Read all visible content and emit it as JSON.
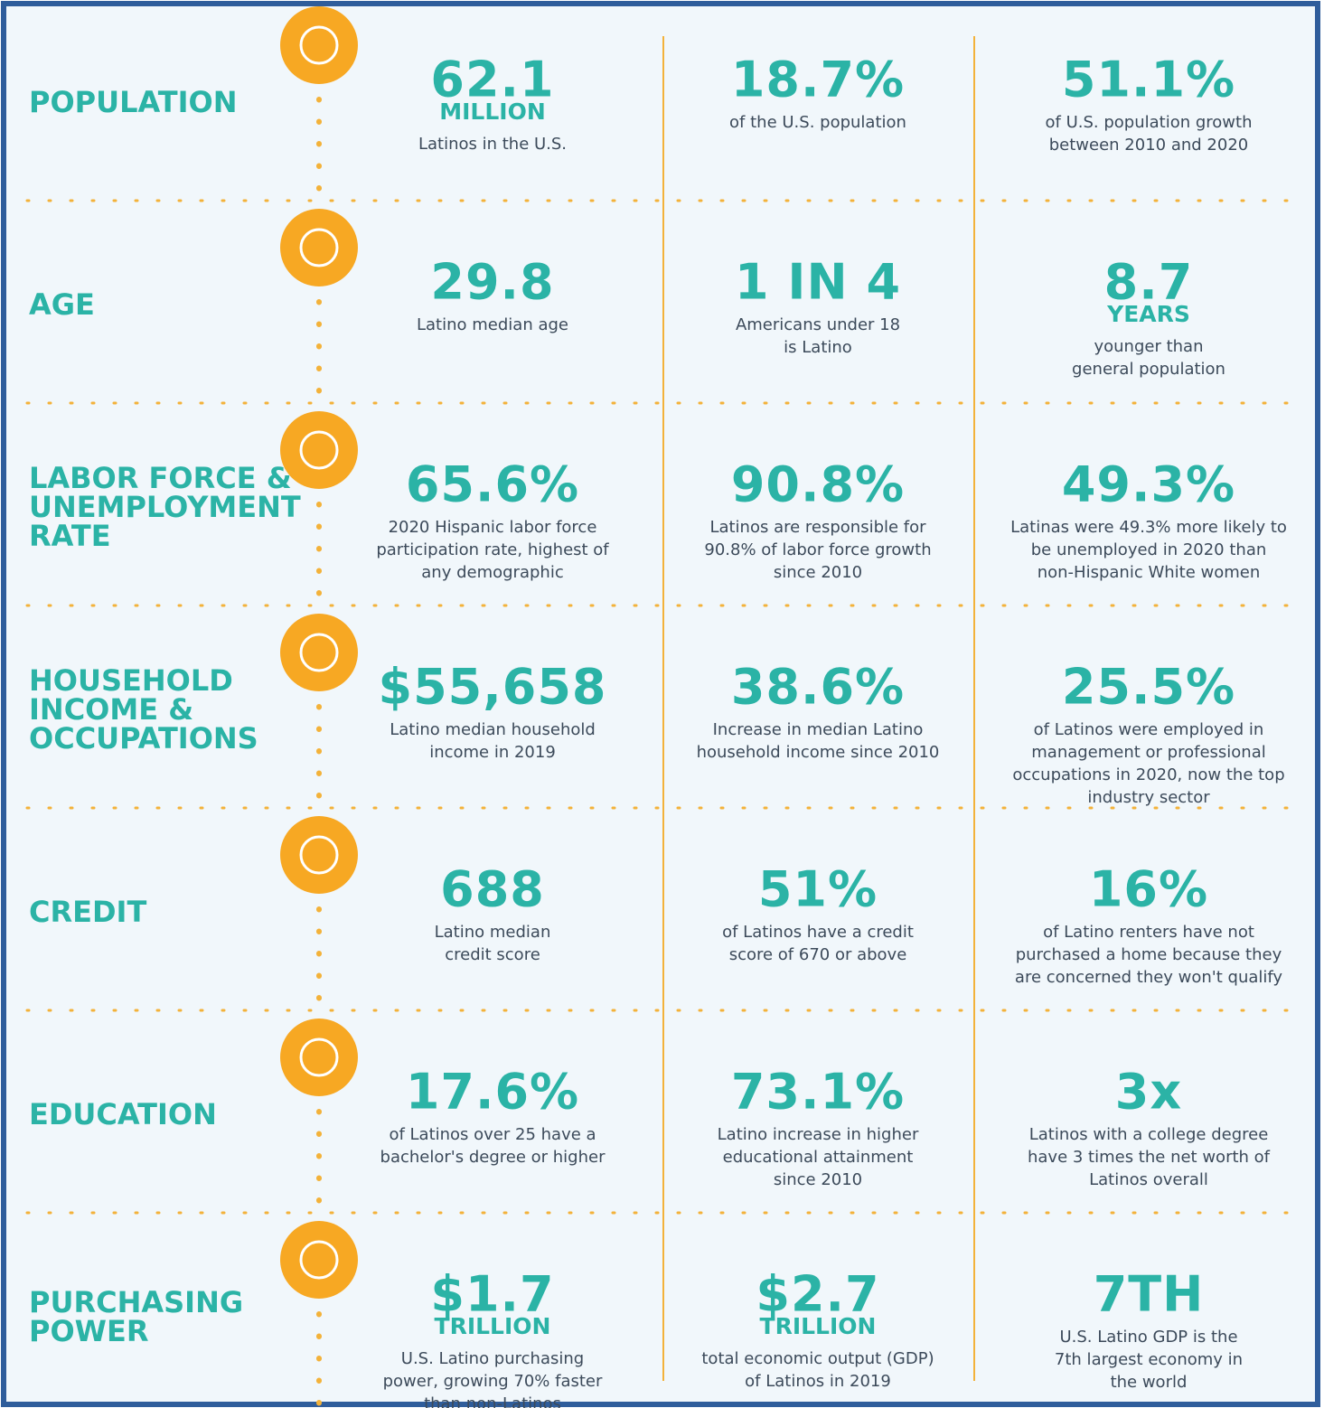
{
  "rows": [
    {
      "label": [
        "POPULATION"
      ],
      "stats": [
        {
          "value": "62.1",
          "unit": "MILLION",
          "desc": [
            "Latinos in the U.S."
          ]
        },
        {
          "value": "18.7%",
          "desc": [
            "of the U.S. population"
          ]
        },
        {
          "value": "51.1%",
          "desc": [
            "of U.S. population growth",
            "between 2010 and 2020"
          ]
        }
      ]
    },
    {
      "label": [
        "AGE"
      ],
      "stats": [
        {
          "value": "29.8",
          "desc": [
            "Latino median age"
          ]
        },
        {
          "value": "1 IN 4",
          "desc": [
            "Americans under 18",
            "is Latino"
          ]
        },
        {
          "value": "8.7",
          "unit": "YEARS",
          "desc": [
            "younger than",
            "general population"
          ]
        }
      ]
    },
    {
      "label": [
        "LABOR FORCE &",
        "UNEMPLOYMENT",
        "RATE"
      ],
      "stats": [
        {
          "value": "65.6%",
          "desc": [
            "2020 Hispanic labor force",
            "participation rate, highest of",
            "any demographic"
          ]
        },
        {
          "value": "90.8%",
          "desc": [
            "Latinos are responsible for",
            "90.8% of labor force growth",
            "since 2010"
          ]
        },
        {
          "value": "49.3%",
          "desc": [
            "Latinas were 49.3% more likely to",
            "be unemployed in 2020 than",
            "non-Hispanic White women"
          ]
        }
      ]
    },
    {
      "label": [
        "HOUSEHOLD",
        "INCOME &",
        "OCCUPATIONS"
      ],
      "stats": [
        {
          "value": "$55,658",
          "desc": [
            "Latino median household",
            "income in 2019"
          ]
        },
        {
          "value": "38.6%",
          "desc": [
            "Increase in median Latino",
            "household income since 2010"
          ]
        },
        {
          "value": "25.5%",
          "desc": [
            "of Latinos were employed in",
            "management or professional",
            "occupations in 2020, now the top",
            "industry sector"
          ]
        }
      ]
    },
    {
      "label": [
        "CREDIT"
      ],
      "stats": [
        {
          "value": "688",
          "desc": [
            "Latino median",
            "credit score"
          ]
        },
        {
          "value": "51%",
          "desc": [
            "of Latinos have a credit",
            "score of 670 or above"
          ]
        },
        {
          "value": "16%",
          "desc": [
            "of Latino renters have not",
            "purchased a home because they",
            "are concerned they won't qualify"
          ]
        }
      ]
    },
    {
      "label": [
        "EDUCATION"
      ],
      "stats": [
        {
          "value": "17.6%",
          "desc": [
            "of Latinos over 25 have a",
            "bachelor's degree or higher"
          ]
        },
        {
          "value": "73.1%",
          "desc": [
            "Latino increase in higher",
            "educational attainment",
            "since 2010"
          ]
        },
        {
          "value": "3x",
          "desc": [
            "Latinos with a college degree",
            "have 3 times the net worth of",
            "Latinos overall"
          ]
        }
      ]
    },
    {
      "label": [
        "PURCHASING",
        "POWER"
      ],
      "stats": [
        {
          "value": "$1.7",
          "unit": "TRILLION",
          "desc": [
            "U.S. Latino purchasing",
            "power, growing 70% faster",
            "than non-Latinos"
          ]
        },
        {
          "value": "$2.7",
          "unit": "TRILLION",
          "desc": [
            "total economic output (GDP)",
            "of Latinos in 2019"
          ]
        },
        {
          "value": "7TH",
          "desc": [
            "U.S. Latino GDP is the",
            "7th largest economy in",
            "the world"
          ]
        }
      ]
    }
  ]
}
